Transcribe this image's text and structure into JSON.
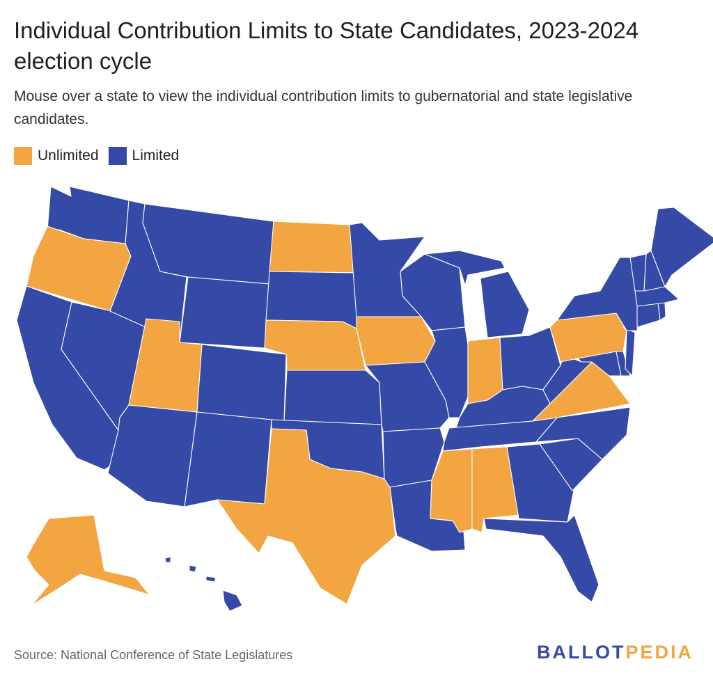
{
  "title": "Individual Contribution Limits to State Candidates, 2023-2024 election cycle",
  "subtitle": "Mouse over a state to view the individual contribution limits to gubernatorial and state legislative candidates.",
  "legend": [
    {
      "label": "Unlimited",
      "color": "#F2A541"
    },
    {
      "label": "Limited",
      "color": "#3549A6"
    }
  ],
  "colors": {
    "unlimited": "#F2A541",
    "limited": "#3549A6",
    "border": "#ffffff"
  },
  "map_data": {
    "type": "choropleth",
    "unlimited_states": [
      "Oregon",
      "Utah",
      "North Dakota",
      "Nebraska",
      "Iowa",
      "Texas",
      "Indiana",
      "Mississippi",
      "Alabama",
      "Pennsylvania",
      "Virginia",
      "Alaska"
    ],
    "limited_states": [
      "Washington",
      "California",
      "Nevada",
      "Idaho",
      "Montana",
      "Wyoming",
      "Colorado",
      "Arizona",
      "New Mexico",
      "South Dakota",
      "Kansas",
      "Oklahoma",
      "Minnesota",
      "Missouri",
      "Arkansas",
      "Louisiana",
      "Wisconsin",
      "Illinois",
      "Michigan",
      "Ohio",
      "Kentucky",
      "Tennessee",
      "Georgia",
      "Florida",
      "South Carolina",
      "North Carolina",
      "West Virginia",
      "Maryland",
      "Delaware",
      "New Jersey",
      "New York",
      "Connecticut",
      "Rhode Island",
      "Massachusetts",
      "Vermont",
      "New Hampshire",
      "Maine",
      "Hawaii"
    ]
  },
  "source": "Source: National Conference of State Legislatures",
  "logo": {
    "part1": "BALLOT",
    "part2": "PEDIA",
    "color1": "#3549A6",
    "color2": "#F2A541"
  }
}
